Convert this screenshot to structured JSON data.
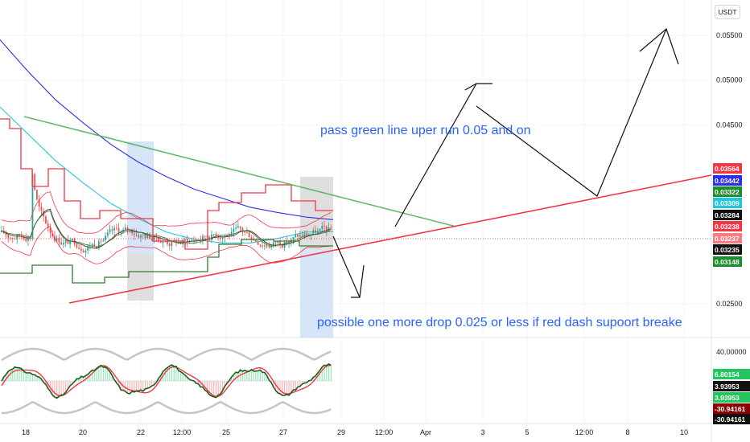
{
  "quote_currency": "USDT",
  "chart_data": {
    "type": "line",
    "title": "",
    "price_axis": {
      "ticks": [
        "0.05500",
        "0.05000",
        "0.04500",
        "0.02500"
      ],
      "tick_values": [
        0.055,
        0.05,
        0.045,
        0.025
      ]
    },
    "time_axis": {
      "ticks": [
        "18",
        "20",
        "22",
        "12:00",
        "25",
        "27",
        "29",
        "12:00",
        "Apr",
        "3",
        "5",
        "12:00",
        "8",
        "10"
      ]
    },
    "price_labels": [
      {
        "text": "0.03564",
        "color": "#f23645"
      },
      {
        "text": "0.03442",
        "color": "#2a2ee8"
      },
      {
        "text": "0.03322",
        "color": "#1b8f2e"
      },
      {
        "text": "0.03309",
        "color": "#26c6da"
      },
      {
        "text": "0.03284",
        "color": "#111111"
      },
      {
        "text": "0.03238",
        "color": "#f23645"
      },
      {
        "text": "0.03237",
        "color": "#f77c80"
      },
      {
        "text": "0.03235",
        "color": "#111111"
      },
      {
        "text": "0.03148",
        "color": "#1b8f2e"
      }
    ],
    "oscillator_axis": {
      "ticks": [
        "40.00000"
      ]
    },
    "oscillator_labels": [
      {
        "text": "6.80154",
        "color": "#22c55e"
      },
      {
        "text": "3.93953",
        "color": "#111111"
      },
      {
        "text": "3.93953",
        "color": "#22c55e"
      },
      {
        "text": "-30.94161",
        "color": "#8b0000"
      },
      {
        "text": "-30.94161",
        "color": "#111111"
      }
    ],
    "annotations": [
      "pass green line uper run 0.05 and on",
      "possible one more drop 0.025 or less if red dash supoort breake"
    ],
    "series": [
      {
        "name": "",
        "color": "#2a2ee8",
        "values": [
          0.0545,
          0.051,
          0.0478,
          0.0452,
          0.0428,
          0.0408,
          0.0392,
          0.0378,
          0.0368,
          0.0358,
          0.0352,
          0.0347,
          0.0344
        ]
      },
      {
        "name": "",
        "color": "#26c6da",
        "values": [
          0.047,
          0.044,
          0.041,
          0.0385,
          0.0362,
          0.0345,
          0.033,
          0.0322,
          0.0318,
          0.0318,
          0.0323,
          0.033,
          0.0331
        ]
      }
    ]
  }
}
